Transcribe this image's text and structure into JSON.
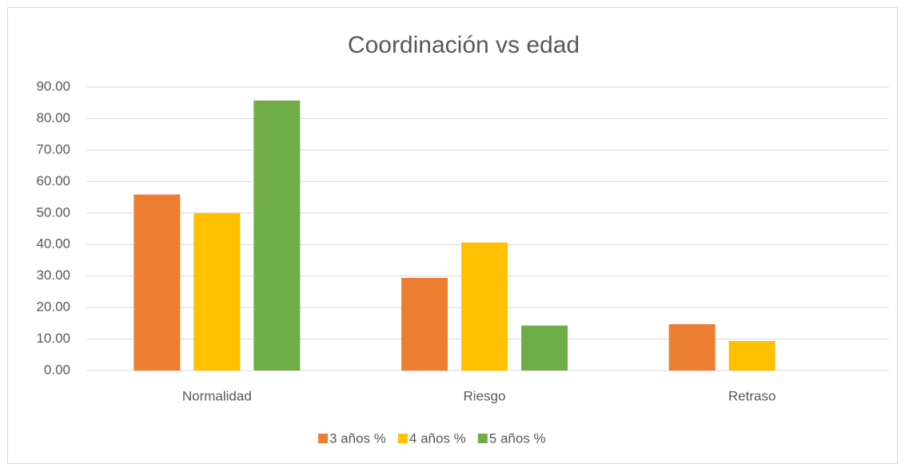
{
  "chart_data": {
    "type": "bar",
    "title": "Coordinación vs edad",
    "categories": [
      "Normalidad",
      "Riesgo",
      "Retraso"
    ],
    "series": [
      {
        "name": "3 años %",
        "color": "#ed7d31",
        "values": [
          55.88,
          29.41,
          14.71
        ]
      },
      {
        "name": "4 años %",
        "color": "#ffc000",
        "values": [
          50.0,
          40.63,
          9.38
        ]
      },
      {
        "name": "5 años %",
        "color": "#70ad47",
        "values": [
          85.71,
          14.29,
          0
        ]
      }
    ],
    "ylim": [
      0,
      90
    ],
    "yticks": [
      {
        "value": 0,
        "label": "0.00"
      },
      {
        "value": 10,
        "label": "10.00"
      },
      {
        "value": 20,
        "label": "20.00"
      },
      {
        "value": 30,
        "label": "30.00"
      },
      {
        "value": 40,
        "label": "40.00"
      },
      {
        "value": 50,
        "label": "50.00"
      },
      {
        "value": 60,
        "label": "60.00"
      },
      {
        "value": 70,
        "label": "70.00"
      },
      {
        "value": 80,
        "label": "80.00"
      },
      {
        "value": 90,
        "label": "90.00"
      }
    ],
    "grid": true,
    "legend": "bottom"
  }
}
